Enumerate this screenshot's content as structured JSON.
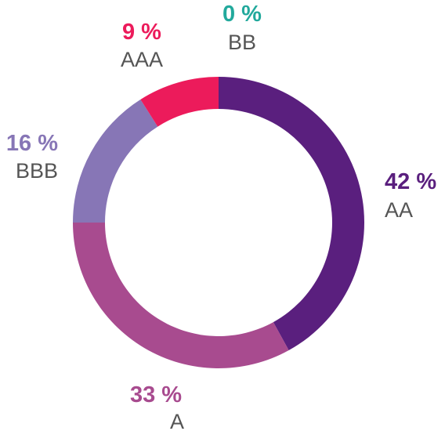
{
  "chart_data": {
    "type": "pie",
    "style": "donut",
    "slices": [
      {
        "label": "AA",
        "value": 42,
        "value_label": "42 %",
        "color": "#5a1f7e"
      },
      {
        "label": "A",
        "value": 33,
        "value_label": "33 %",
        "color": "#a84b8f"
      },
      {
        "label": "BBB",
        "value": 16,
        "value_label": "16 %",
        "color": "#8776b6"
      },
      {
        "label": "AAA",
        "value": 9,
        "value_label": "9 %",
        "color": "#ec1b5b"
      },
      {
        "label": "BB",
        "value": 0,
        "value_label": "0 %",
        "color": "#22a99c"
      }
    ],
    "title": "",
    "legend": "none"
  }
}
